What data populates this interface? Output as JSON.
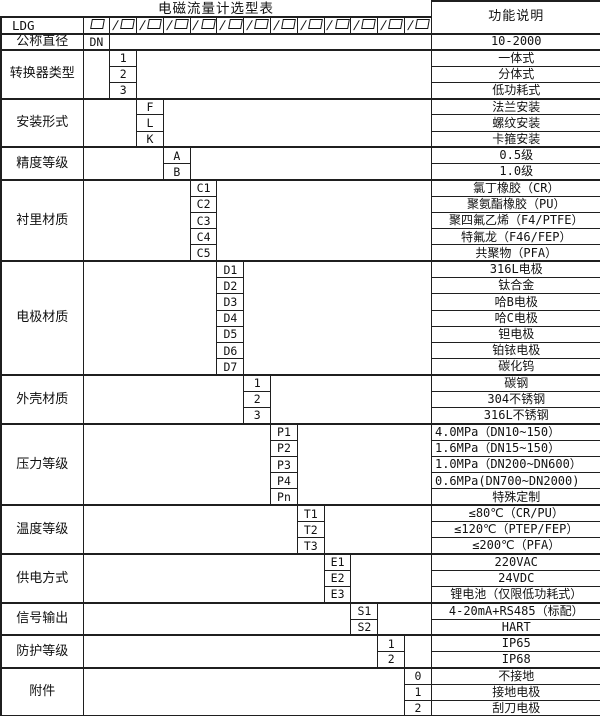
{
  "colors": {
    "background": "#ffffff",
    "grid": "#1f1f1f",
    "text": "#111111"
  },
  "header": {
    "title": "电磁流量计选型表",
    "function_column": "功能说明",
    "model_prefix": "LDG",
    "slash": "/"
  },
  "sections": [
    {
      "label": "公称直径",
      "rows": [
        {
          "code": "DN",
          "desc": "10-2000"
        }
      ]
    },
    {
      "label": "转换器类型",
      "rows": [
        {
          "code": "1",
          "desc": "一体式"
        },
        {
          "code": "2",
          "desc": "分体式"
        },
        {
          "code": "3",
          "desc": "低功耗式"
        }
      ]
    },
    {
      "label": "安装形式",
      "rows": [
        {
          "code": "F",
          "desc": "法兰安装"
        },
        {
          "code": "L",
          "desc": "螺纹安装"
        },
        {
          "code": "K",
          "desc": "卡箍安装"
        }
      ]
    },
    {
      "label": "精度等级",
      "rows": [
        {
          "code": "A",
          "desc": "0.5级"
        },
        {
          "code": "B",
          "desc": "1.0级"
        }
      ]
    },
    {
      "label": "衬里材质",
      "rows": [
        {
          "code": "C1",
          "desc": "氯丁橡胶（CR）"
        },
        {
          "code": "C2",
          "desc": "聚氨酯橡胶（PU）"
        },
        {
          "code": "C3",
          "desc": "聚四氟乙烯（F4/PTFE）"
        },
        {
          "code": "C4",
          "desc": "特氟龙（F46/FEP）"
        },
        {
          "code": "C5",
          "desc": "共聚物（PFA）"
        }
      ]
    },
    {
      "label": "电极材质",
      "rows": [
        {
          "code": "D1",
          "desc": "316L电极"
        },
        {
          "code": "D2",
          "desc": "钛合金"
        },
        {
          "code": "D3",
          "desc": "哈B电极"
        },
        {
          "code": "D4",
          "desc": "哈C电极"
        },
        {
          "code": "D5",
          "desc": "钽电极"
        },
        {
          "code": "D6",
          "desc": "铂铱电极"
        },
        {
          "code": "D7",
          "desc": "碳化钨"
        }
      ]
    },
    {
      "label": "外壳材质",
      "rows": [
        {
          "code": "1",
          "desc": "碳钢"
        },
        {
          "code": "2",
          "desc": "304不锈钢"
        },
        {
          "code": "3",
          "desc": "316L不锈钢"
        }
      ]
    },
    {
      "label": "压力等级",
      "rows": [
        {
          "code": "P1",
          "desc": "4.0MPa（DN10~150）"
        },
        {
          "code": "P2",
          "desc": "1.6MPa（DN15~150）"
        },
        {
          "code": "P3",
          "desc": "1.0MPa（DN200~DN600）"
        },
        {
          "code": "P4",
          "desc": "0.6MPa(DN700~DN2000)"
        },
        {
          "code": "Pn",
          "desc": "特殊定制"
        }
      ]
    },
    {
      "label": "温度等级",
      "rows": [
        {
          "code": "T1",
          "desc": "≤80℃（CR/PU）"
        },
        {
          "code": "T2",
          "desc": "≤120℃（PTEP/FEP）"
        },
        {
          "code": "T3",
          "desc": "≤200℃（PFA）"
        }
      ]
    },
    {
      "label": "供电方式",
      "rows": [
        {
          "code": "E1",
          "desc": "220VAC"
        },
        {
          "code": "E2",
          "desc": "24VDC"
        },
        {
          "code": "E3",
          "desc": "锂电池（仅限低功耗式）"
        }
      ]
    },
    {
      "label": "信号输出",
      "rows": [
        {
          "code": "S1",
          "desc": "4-20mA+RS485（标配）"
        },
        {
          "code": "S2",
          "desc": "HART"
        }
      ]
    },
    {
      "label": "防护等级",
      "rows": [
        {
          "code": "1",
          "desc": "IP65"
        },
        {
          "code": "2",
          "desc": "IP68"
        }
      ]
    },
    {
      "label": "附件",
      "rows": [
        {
          "code": "0",
          "desc": "不接地"
        },
        {
          "code": "1",
          "desc": "接地电极"
        },
        {
          "code": "2",
          "desc": "刮刀电极"
        }
      ]
    }
  ]
}
